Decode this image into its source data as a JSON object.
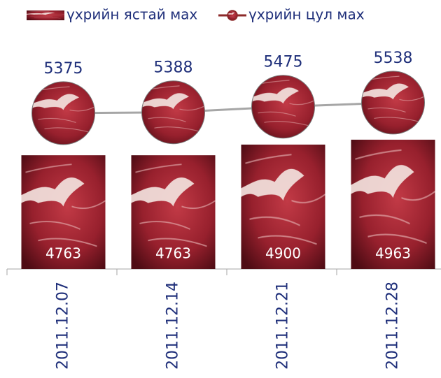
{
  "chart_data": {
    "type": "bar_line",
    "categories": [
      "2011.12.07",
      "2011.12.14",
      "2011.12.21",
      "2011.12.28"
    ],
    "series": [
      {
        "name": "үхрийн ястай мах",
        "type": "bar",
        "color": "#9b1b2a",
        "values": [
          4763,
          4763,
          4900,
          4963
        ]
      },
      {
        "name": "үхрийн цул мах",
        "type": "line",
        "axis": "y2",
        "color": "#a6a6a6",
        "values": [
          5375,
          5388,
          5475,
          5538
        ]
      }
    ],
    "ylim": [
      3300,
      6400
    ],
    "y2lim": [
      2950,
      6700
    ],
    "grid": false,
    "legend": "top"
  }
}
